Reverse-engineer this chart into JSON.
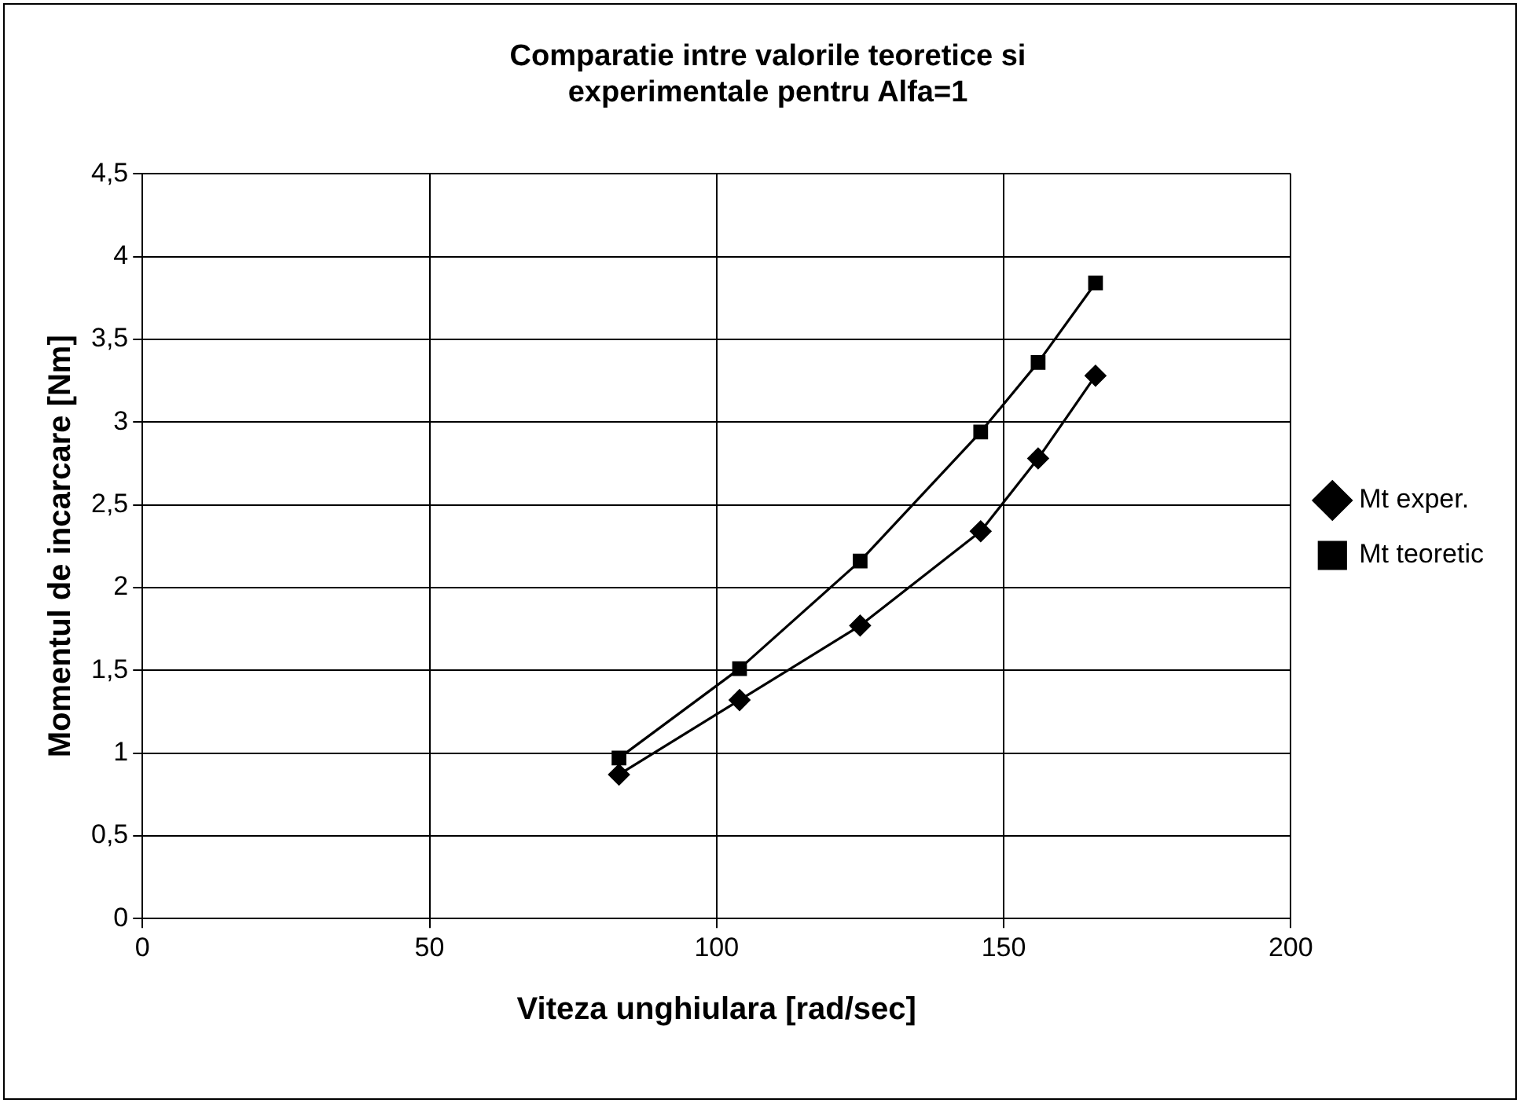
{
  "chart_data": {
    "type": "line",
    "title": "Comparatie intre valorile teoretice si experimentale pentru Alfa=1",
    "xlabel": "Viteza unghiulara [rad/sec]",
    "ylabel": "Momentul de incarcare [Nm]",
    "x": [
      83,
      104,
      125,
      146,
      156,
      166
    ],
    "series": [
      {
        "name": "Mt exper.",
        "color": "#000000",
        "marker": "diamond",
        "values": [
          0.87,
          1.32,
          1.77,
          2.34,
          2.78,
          3.28
        ]
      },
      {
        "name": "Mt teoretic",
        "color": "#000000",
        "marker": "square",
        "values": [
          0.97,
          1.51,
          2.16,
          2.94,
          3.36,
          3.84
        ]
      }
    ],
    "xlim": [
      0,
      200
    ],
    "xticks": [
      0,
      50,
      100,
      150,
      200
    ],
    "ylim": [
      0,
      4.5
    ],
    "yticks": [
      {
        "value": 0,
        "label": "0"
      },
      {
        "value": 0.5,
        "label": "0,5"
      },
      {
        "value": 1,
        "label": "1"
      },
      {
        "value": 1.5,
        "label": "1,5"
      },
      {
        "value": 2,
        "label": "2"
      },
      {
        "value": 2.5,
        "label": "2,5"
      },
      {
        "value": 3,
        "label": "3"
      },
      {
        "value": 3.5,
        "label": "3,5"
      },
      {
        "value": 4,
        "label": "4"
      },
      {
        "value": 4.5,
        "label": "4,5"
      }
    ],
    "grid": true,
    "legend": "right"
  }
}
